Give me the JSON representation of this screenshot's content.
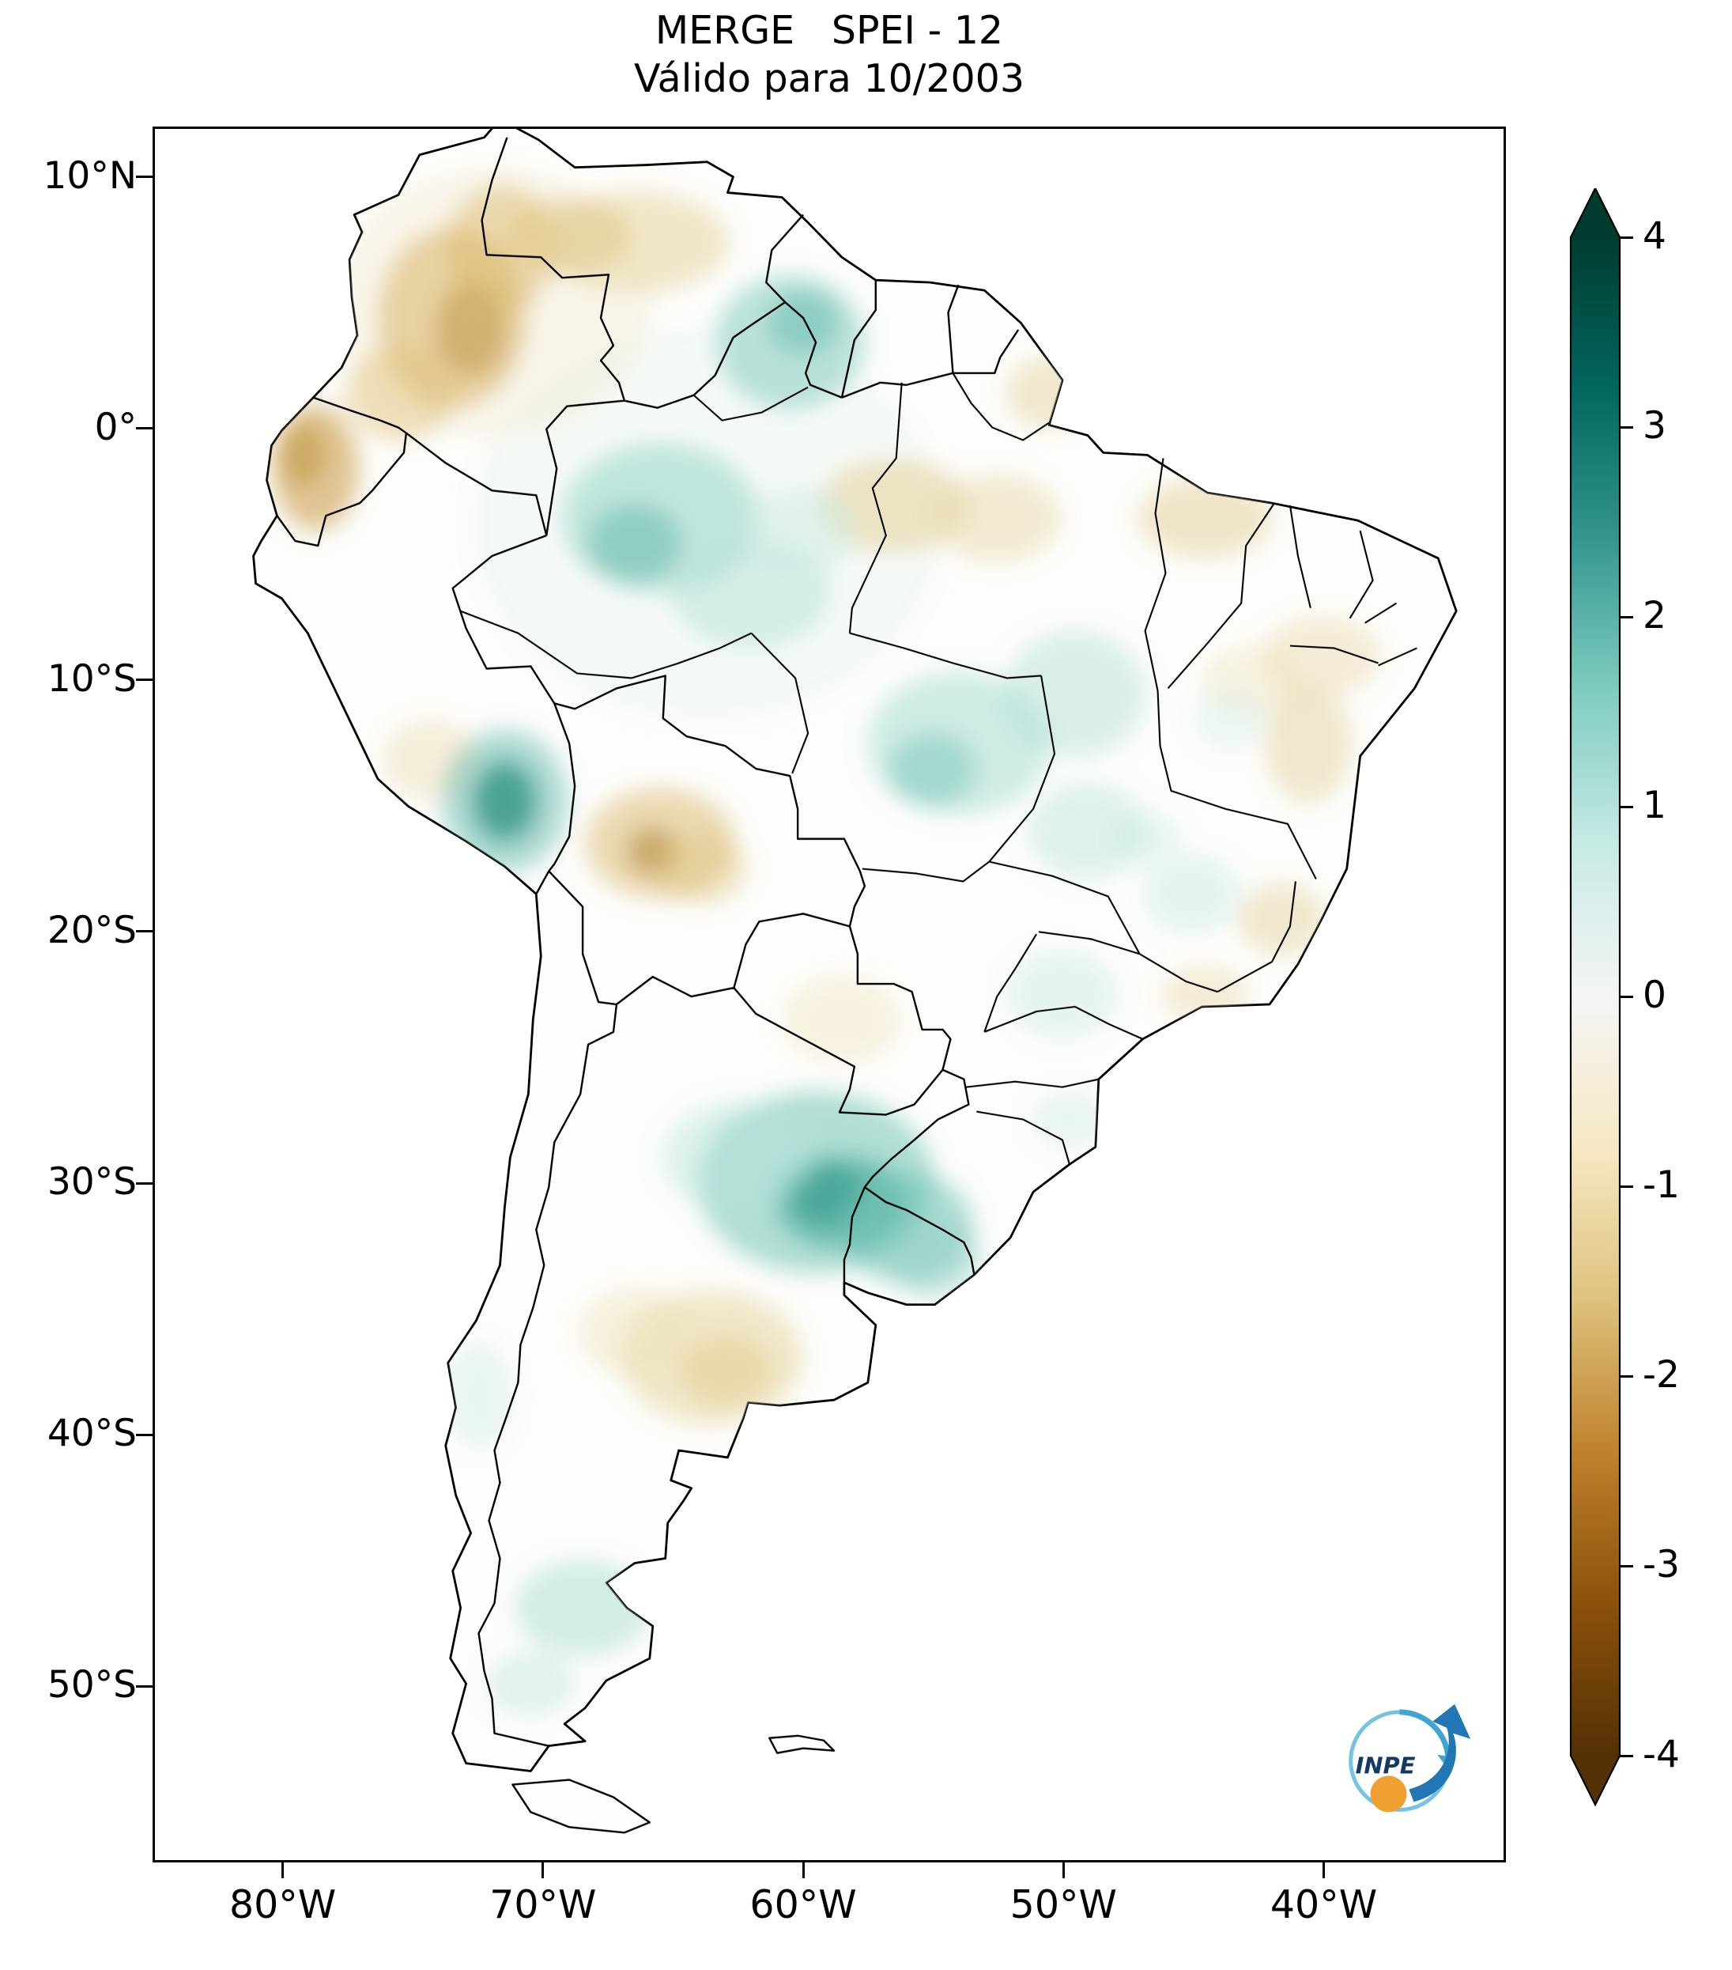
{
  "title": {
    "line1": "MERGE   SPEI - 12",
    "line2": "Válido para 10/2003"
  },
  "y_axis": {
    "ticks": [
      {
        "label": "10°N",
        "lat": 10
      },
      {
        "label": "0°",
        "lat": 0
      },
      {
        "label": "10°S",
        "lat": -10
      },
      {
        "label": "20°S",
        "lat": -20
      },
      {
        "label": "30°S",
        "lat": -30
      },
      {
        "label": "40°S",
        "lat": -40
      },
      {
        "label": "50°S",
        "lat": -50
      }
    ]
  },
  "x_axis": {
    "ticks": [
      {
        "label": "80°W",
        "lon": -80
      },
      {
        "label": "70°W",
        "lon": -70
      },
      {
        "label": "60°W",
        "lon": -60
      },
      {
        "label": "50°W",
        "lon": -50
      },
      {
        "label": "40°W",
        "lon": -40
      }
    ]
  },
  "colorbar": {
    "vmin": -4,
    "vmax": 4,
    "extend": "both",
    "ticks": [
      {
        "label": "4",
        "value": 4
      },
      {
        "label": "3",
        "value": 3
      },
      {
        "label": "2",
        "value": 2
      },
      {
        "label": "1",
        "value": 1
      },
      {
        "label": "0",
        "value": 0
      },
      {
        "label": "-1",
        "value": -1
      },
      {
        "label": "-2",
        "value": -2
      },
      {
        "label": "-3",
        "value": -3
      },
      {
        "label": "-4",
        "value": -4
      }
    ],
    "colors": [
      "#003c30",
      "#01665e",
      "#35978f",
      "#80cdc1",
      "#c7eae5",
      "#f5f5f5",
      "#f6e8c3",
      "#dfc27d",
      "#bf812d",
      "#8c510a",
      "#543005"
    ]
  },
  "logo": {
    "label": "INPE"
  },
  "chart_data": {
    "type": "map",
    "title": "MERGE   SPEI - 12",
    "subtitle": "Válido para 10/2003",
    "variable": "SPEI-12 drought index",
    "region": "South America",
    "colorbar": {
      "min": -4,
      "max": 4,
      "ticks": [
        4,
        3,
        2,
        1,
        0,
        -1,
        -2,
        -3,
        -4
      ],
      "colormap": "BrBG",
      "extend": "both"
    },
    "lat_ticks": [
      10,
      0,
      -10,
      -20,
      -30,
      -40,
      -50
    ],
    "lon_ticks": [
      -80,
      -70,
      -60,
      -50,
      -40
    ],
    "notable_anomalies": [
      {
        "area": "interior Colombia / western Venezuela",
        "spei": -1.5
      },
      {
        "area": "coastal Ecuador / northern Peru",
        "spei": -1.5
      },
      {
        "area": "central Amazonas (Brazil)",
        "spei": 1.0
      },
      {
        "area": "Guyana / Roraima",
        "spei": 1.0
      },
      {
        "area": "southeastern Peru",
        "spei": 2.0
      },
      {
        "area": "central Bolivia",
        "spei": -1.2
      },
      {
        "area": "northeastern Argentina / Uruguay / Rio Grande do Sul",
        "spei": 2.0
      },
      {
        "area": "central Argentina pampas",
        "spei": -1.0
      },
      {
        "area": "southern Patagonia",
        "spei": 1.0
      }
    ]
  }
}
